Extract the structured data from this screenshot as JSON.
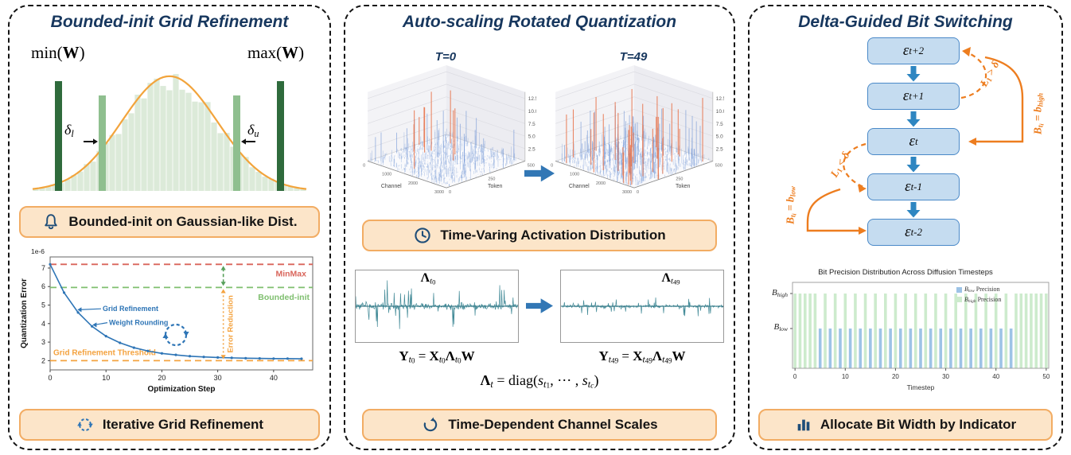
{
  "colors": {
    "navy_title": "#17375E",
    "badge_bg": "#FCE5C9",
    "badge_border": "#F2AC63",
    "orange_accent": "#ED7D1F",
    "blue_accent": "#2E75B6",
    "flow_box_bg": "#C5DCF0",
    "flow_box_border": "#4A89C8",
    "dark_green_clip": "#2F6B3C",
    "light_green_clip": "#8FBF8F",
    "hist_fill": "#DCEAD9",
    "gauss_curve": "#F2A43C",
    "teal_signal": "#2E7D8C"
  },
  "left": {
    "title": "Bounded-init Grid Refinement",
    "dist": {
      "min_label": [
        {
          "t": "min("
        },
        {
          "t": "W",
          "b": 1
        },
        {
          "t": ")"
        }
      ],
      "max_label": [
        {
          "t": "max("
        },
        {
          "t": "W",
          "b": 1
        },
        {
          "t": ")"
        }
      ],
      "delta_l": [
        {
          "t": "δ",
          "i": 1
        },
        {
          "t": "l",
          "i": 1,
          "sub": 1
        }
      ],
      "delta_u": [
        {
          "t": "δ",
          "i": 1
        },
        {
          "t": "u",
          "i": 1,
          "sub": 1
        }
      ]
    },
    "badge1": "Bounded-init on Gaussian-like Dist.",
    "badge2": "Iterative Grid Refinement"
  },
  "middle": {
    "title": "Auto-scaling Rotated Quantization",
    "badge1": "Time-Varing Activation Distribution",
    "badge2": "Time-Dependent Channel Scales",
    "waves": [
      {
        "label": [
          {
            "t": "Λ",
            "b": 1
          },
          {
            "t": "t",
            "i": 1,
            "sub": 1
          },
          {
            "t": "0",
            "sub": 2
          }
        ]
      },
      {
        "label": [
          {
            "t": "Λ",
            "b": 1
          },
          {
            "t": "t",
            "i": 1,
            "sub": 1
          },
          {
            "t": "49",
            "sub": 2
          }
        ]
      }
    ],
    "equations": {
      "eq1": [
        {
          "t": "Y",
          "b": 1
        },
        {
          "t": "t",
          "i": 1,
          "sub": 1
        },
        {
          "t": "0",
          "sub": 2
        },
        {
          "t": " = "
        },
        {
          "t": "X",
          "b": 1
        },
        {
          "t": "t",
          "i": 1,
          "sub": 1
        },
        {
          "t": "0",
          "sub": 2
        },
        {
          "t": "Λ",
          "b": 1
        },
        {
          "t": "t",
          "i": 1,
          "sub": 1
        },
        {
          "t": "0",
          "sub": 2
        },
        {
          "t": "W",
          "b": 1
        }
      ],
      "eq2": [
        {
          "t": "Y",
          "b": 1
        },
        {
          "t": "t",
          "i": 1,
          "sub": 1
        },
        {
          "t": "49",
          "sub": 2
        },
        {
          "t": " = "
        },
        {
          "t": "X",
          "b": 1
        },
        {
          "t": "t",
          "i": 1,
          "sub": 1
        },
        {
          "t": "49",
          "sub": 2
        },
        {
          "t": "Λ",
          "b": 1
        },
        {
          "t": "t",
          "i": 1,
          "sub": 1
        },
        {
          "t": "49",
          "sub": 2
        },
        {
          "t": "W",
          "b": 1
        }
      ],
      "eq3": [
        {
          "t": "Λ",
          "b": 1
        },
        {
          "t": "t",
          "i": 1,
          "sub": 1
        },
        {
          "t": " = diag("
        },
        {
          "t": "s",
          "i": 1
        },
        {
          "t": "t",
          "i": 1,
          "sub": 1
        },
        {
          "t": "1",
          "sub": 2
        },
        {
          "t": ", ⋯ , "
        },
        {
          "t": "s",
          "i": 1
        },
        {
          "t": "t",
          "i": 1,
          "sub": 1
        },
        {
          "t": "c",
          "i": 1,
          "sub": 2
        },
        {
          "t": ")"
        }
      ]
    }
  },
  "right": {
    "title": "Delta-Guided Bit Switching",
    "badge": "Allocate Bit Width by Indicator",
    "flow": {
      "nodes": [
        [
          {
            "t": "ε",
            "i": 1
          },
          {
            "t": "t+2",
            "i": 1,
            "sub": 1
          }
        ],
        [
          {
            "t": "ε",
            "i": 1
          },
          {
            "t": "t+1",
            "i": 1,
            "sub": 1
          }
        ],
        [
          {
            "t": "ε",
            "i": 1
          },
          {
            "t": "t",
            "i": 1,
            "sub": 1
          }
        ],
        [
          {
            "t": "ε",
            "i": 1
          },
          {
            "t": "t-1",
            "i": 1,
            "sub": 1
          }
        ],
        [
          {
            "t": "ε",
            "i": 1
          },
          {
            "t": "t-2",
            "i": 1,
            "sub": 1
          }
        ]
      ],
      "edge_labels": {
        "l1_gt": [
          {
            "t": "L",
            "i": 1
          },
          {
            "t": "1",
            "sub": 1
          },
          {
            "t": " > "
          },
          {
            "t": "δ",
            "i": 1
          }
        ],
        "l1_lt": [
          {
            "t": "L",
            "i": 1
          },
          {
            "t": "1",
            "sub": 1
          },
          {
            "t": " < "
          },
          {
            "t": "δ",
            "i": 1
          }
        ],
        "b_high": [
          {
            "t": "B",
            "i": 1
          },
          {
            "t": "t",
            "i": 1,
            "sub": 1
          },
          {
            "t": "i",
            "i": 1,
            "sub": 2
          },
          {
            "t": " = "
          },
          {
            "t": "b",
            "i": 1
          },
          {
            "t": "high",
            "i": 1,
            "sub": 1
          }
        ],
        "b_low": [
          {
            "t": "B",
            "i": 1
          },
          {
            "t": "t",
            "i": 1,
            "sub": 1
          },
          {
            "t": "i",
            "i": 1,
            "sub": 2
          },
          {
            "t": " = "
          },
          {
            "t": "b",
            "i": 1
          },
          {
            "t": "low",
            "i": 1,
            "sub": 1
          }
        ]
      }
    },
    "bit_chart": {
      "y_high": [
        {
          "t": "B",
          "i": 1
        },
        {
          "t": "high",
          "i": 1,
          "sub": 1
        }
      ],
      "y_low": [
        {
          "t": "B",
          "i": 1
        },
        {
          "t": "low",
          "i": 1,
          "sub": 1
        }
      ],
      "legend_low": [
        {
          "t": "B",
          "i": 1
        },
        {
          "t": "low",
          "i": 1,
          "sub": 1
        },
        {
          "t": " Precision"
        }
      ],
      "legend_high": [
        {
          "t": "B",
          "i": 1
        },
        {
          "t": "high",
          "i": 1,
          "sub": 1
        },
        {
          "t": " Precision"
        }
      ]
    }
  },
  "chart_data": [
    {
      "type": "line",
      "xlabel": "Optimization Step",
      "ylabel": "Quantization Error",
      "y_offset_label": "1e-6",
      "xlim": [
        0,
        47
      ],
      "ylim": [
        1.5,
        7.6
      ],
      "yticks": [
        2,
        3,
        4,
        5,
        6,
        7
      ],
      "xticks": [
        0,
        10,
        20,
        30,
        40
      ],
      "x": [
        0,
        2.5,
        5,
        7.5,
        10,
        12.5,
        15,
        17.5,
        20,
        22.5,
        25,
        27.5,
        30,
        32.5,
        35,
        37.5,
        40,
        42.5,
        45
      ],
      "y": [
        7.2,
        5.67,
        4.6,
        3.85,
        3.32,
        2.96,
        2.7,
        2.52,
        2.39,
        2.31,
        2.24,
        2.2,
        2.17,
        2.15,
        2.13,
        2.12,
        2.11,
        2.11,
        2.1
      ],
      "series_color": "#2E75B6",
      "hlines": [
        {
          "value": 7.2,
          "label": "MinMax",
          "color": "#D9655B"
        },
        {
          "value": 5.95,
          "label": "Bounded-init",
          "color": "#7FBF6F"
        },
        {
          "value": 2.0,
          "label": "Grid Refinement Threshold",
          "color": "#F4A340"
        }
      ],
      "annotations": [
        "Grid Refinement",
        "Weight Rounding",
        "Error Reduction"
      ]
    },
    {
      "type": "bar",
      "title": "Bit Precision Distribution Across Diffusion Timesteps",
      "xlabel": "Timestep",
      "xticks": [
        0,
        10,
        20,
        30,
        40,
        50
      ],
      "categories_y": [
        "b_high",
        "b_low"
      ],
      "color_low": "#9DC3E6",
      "color_high": "#CDEBCD",
      "precision": [
        "high",
        "high",
        "high",
        "high",
        "high",
        "low",
        "high",
        "low",
        "high",
        "low",
        "high",
        "low",
        "high",
        "low",
        "high",
        "low",
        "high",
        "low",
        "high",
        "low",
        "high",
        "low",
        "high",
        "low",
        "high",
        "low",
        "high",
        "low",
        "high",
        "low",
        "high",
        "low",
        "high",
        "low",
        "high",
        "low",
        "high",
        "low",
        "high",
        "low",
        "high",
        "low",
        "high",
        "low",
        "high",
        "high",
        "high",
        "high",
        "high",
        "high",
        "high"
      ]
    },
    {
      "type": "histogram",
      "shape": "gaussian-like",
      "seed": 5
    },
    {
      "type": "surface",
      "t_label": "T=0",
      "seed": 7,
      "zticks": [
        "2.5",
        "5.0",
        "7.5",
        "10.0",
        "12.5"
      ],
      "xlabel": "Channel",
      "ylabel": "Token",
      "xticks": [
        "0",
        "1000",
        "2000",
        "3000"
      ],
      "yticks": [
        "0",
        "250",
        "500"
      ],
      "tall_spikes": 22,
      "hot_spikes": 9
    },
    {
      "type": "surface",
      "t_label": "T=49",
      "seed": 13,
      "zticks": [
        "2.5",
        "5.0",
        "7.5",
        "10.0",
        "12.5"
      ],
      "xlabel": "Channel",
      "ylabel": "Token",
      "xticks": [
        "0",
        "1000",
        "2000",
        "3000"
      ],
      "yticks": [
        "0",
        "250",
        "500"
      ],
      "tall_spikes": 60,
      "hot_spikes": 30
    },
    {
      "type": "signal",
      "seed": 3,
      "amp": 1.0
    },
    {
      "type": "signal",
      "seed": 11,
      "amp": 0.45
    }
  ]
}
